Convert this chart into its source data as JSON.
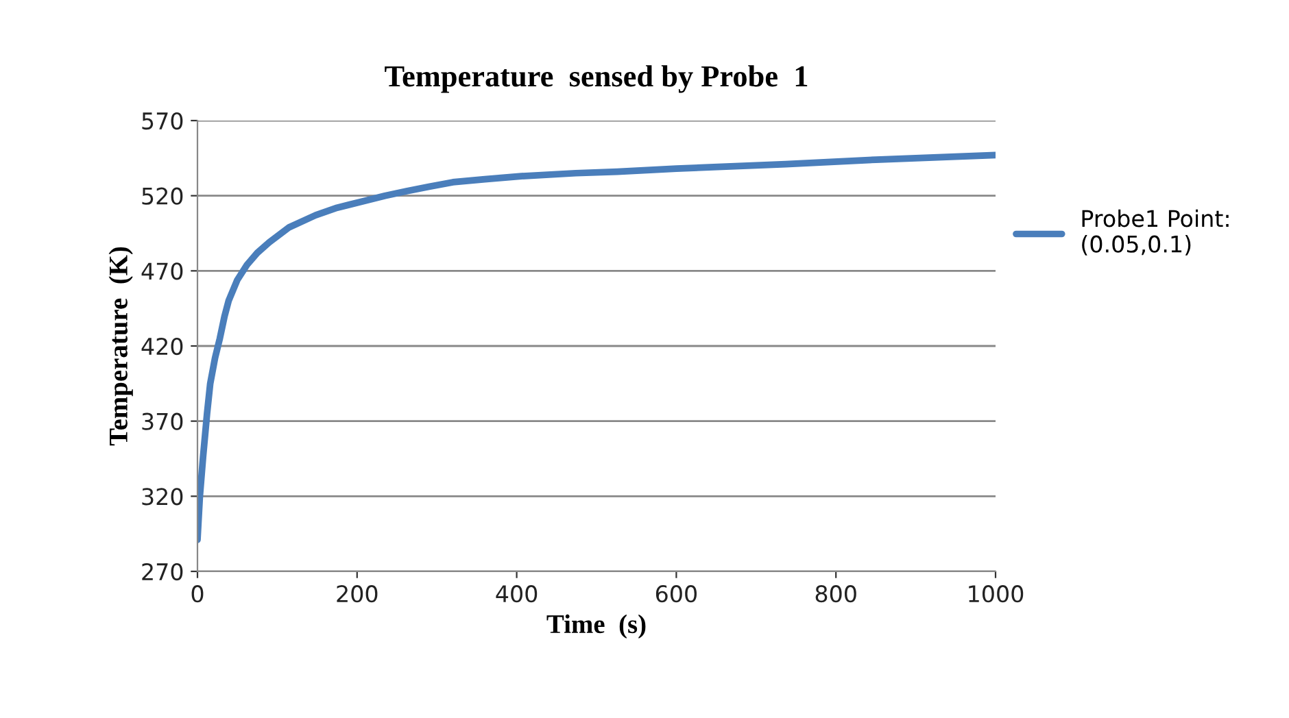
{
  "chart_data": {
    "type": "line",
    "title": "Temperature  sensed by Probe  1",
    "xlabel": "Time  (s)",
    "ylabel": "Temperature  (K)",
    "series": [
      {
        "name": "Probe1 Point:\n(0.05,0.1)",
        "color": "#4a7ebb",
        "x": [
          0,
          3,
          7,
          12,
          16,
          22,
          28,
          34,
          39,
          50,
          62,
          75,
          90,
          115,
          148,
          175,
          205,
          235,
          262,
          290,
          320,
          360,
          406,
          474,
          526,
          600,
          737,
          850,
          1000
        ],
        "values": [
          291,
          320,
          346,
          375,
          395,
          412,
          425,
          440,
          450,
          464,
          474,
          482,
          489,
          499,
          507,
          512,
          516,
          520,
          523,
          526,
          529,
          531,
          533,
          535,
          536,
          538,
          541,
          544,
          547
        ]
      }
    ],
    "xlim": [
      0,
      1000
    ],
    "xticks": [
      0,
      200,
      400,
      600,
      800,
      1000
    ],
    "ylim": [
      270,
      570
    ],
    "yticks": [
      270,
      320,
      370,
      420,
      470,
      520,
      570
    ],
    "grid": "y",
    "legend": "right",
    "marker": "none",
    "line_style": "solid"
  }
}
